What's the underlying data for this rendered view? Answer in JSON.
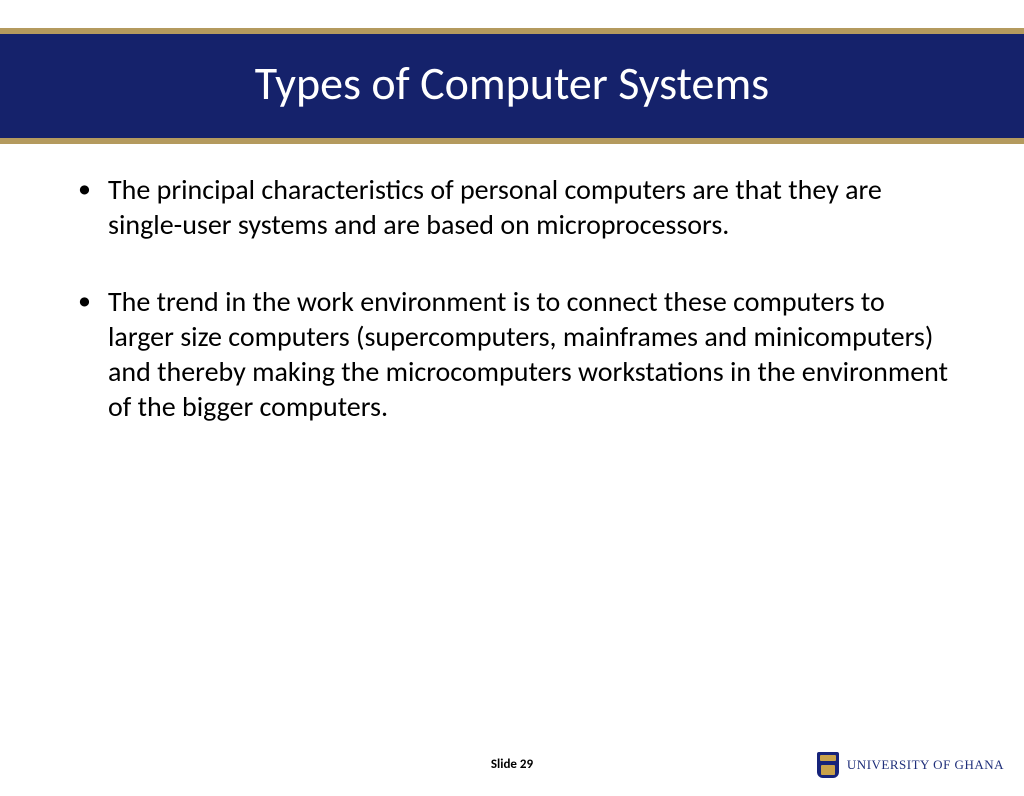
{
  "slide": {
    "title": "Types of Computer Systems",
    "bullets": [
      "The principal characteristics of personal computers are that they are single-user systems and are based on microprocessors.",
      "The trend in the work environment is to connect these computers to larger size computers (supercomputers, mainframes and minicomputers) and thereby making the microcomputers workstations in the environment of the bigger computers."
    ],
    "footer": {
      "slide_label": "Slide 29",
      "institution": "UNIVERSITY OF GHANA"
    }
  },
  "styles": {
    "title_bg": "#15226b",
    "accent_border": "#b49a5e",
    "title_color": "#ffffff",
    "body_color": "#000000",
    "logo_color": "#1f2f7a",
    "title_fontsize": 46,
    "body_fontsize": 28,
    "footer_fontsize": 13
  }
}
